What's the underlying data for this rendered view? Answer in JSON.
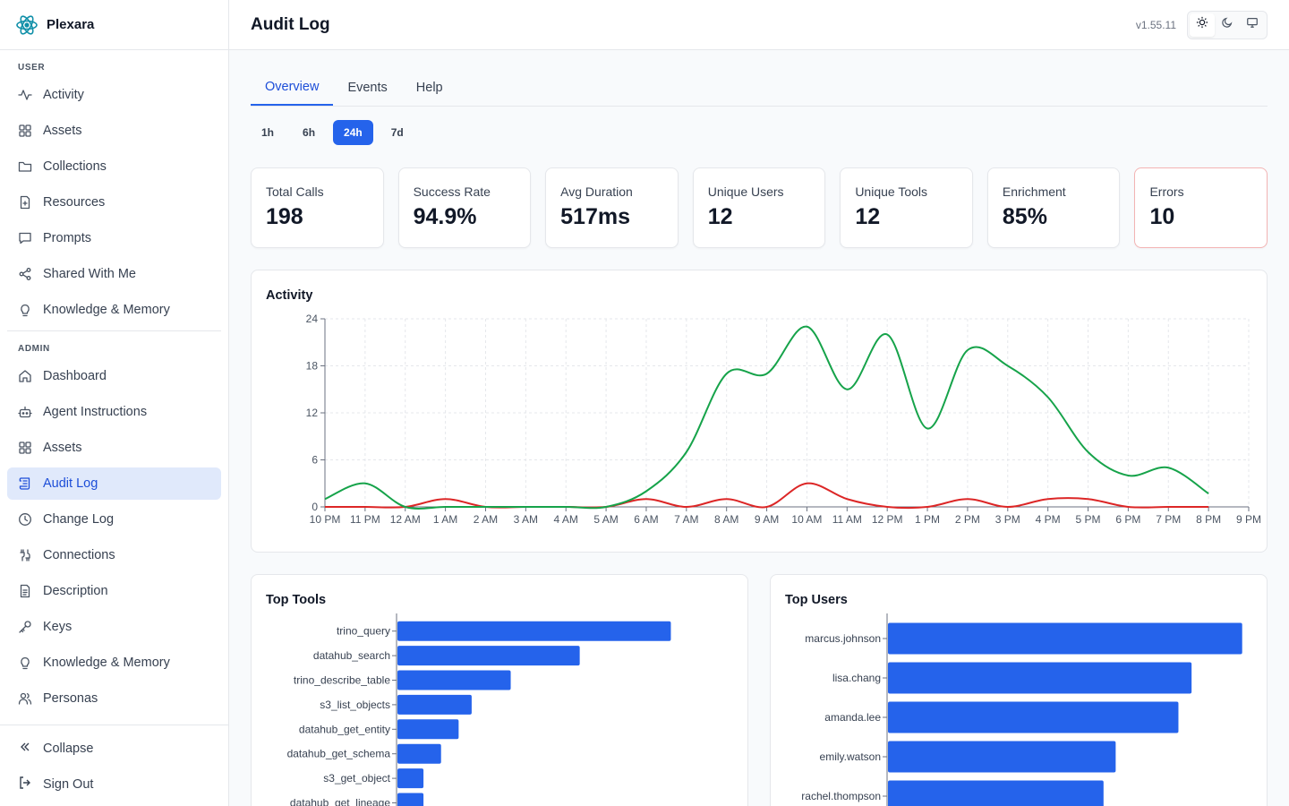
{
  "app": {
    "name": "Plexara",
    "version": "v1.55.11"
  },
  "header": {
    "title": "Audit Log"
  },
  "sidebar": {
    "user_label": "USER",
    "user_items": [
      {
        "label": "Activity",
        "icon": "activity-icon"
      },
      {
        "label": "Assets",
        "icon": "grid-icon"
      },
      {
        "label": "Collections",
        "icon": "folder-icon"
      },
      {
        "label": "Resources",
        "icon": "file-icon"
      },
      {
        "label": "Prompts",
        "icon": "message-icon"
      },
      {
        "label": "Shared With Me",
        "icon": "share-icon"
      },
      {
        "label": "Knowledge & Memory",
        "icon": "lightbulb-icon"
      }
    ],
    "admin_label": "ADMIN",
    "admin_items": [
      {
        "label": "Dashboard",
        "icon": "home-icon"
      },
      {
        "label": "Agent Instructions",
        "icon": "bot-icon"
      },
      {
        "label": "Assets",
        "icon": "grid-icon"
      },
      {
        "label": "Audit Log",
        "icon": "scroll-icon",
        "active": true
      },
      {
        "label": "Change Log",
        "icon": "clock-icon"
      },
      {
        "label": "Connections",
        "icon": "cable-icon"
      },
      {
        "label": "Description",
        "icon": "doc-icon"
      },
      {
        "label": "Keys",
        "icon": "key-icon"
      },
      {
        "label": "Knowledge & Memory",
        "icon": "lightbulb-icon"
      },
      {
        "label": "Personas",
        "icon": "users-icon"
      }
    ],
    "footer": {
      "collapse": "Collapse",
      "signout": "Sign Out"
    }
  },
  "tabs": [
    "Overview",
    "Events",
    "Help"
  ],
  "ranges": [
    "1h",
    "6h",
    "24h",
    "7d"
  ],
  "stats": [
    {
      "label": "Total Calls",
      "value": "198"
    },
    {
      "label": "Success Rate",
      "value": "94.9%"
    },
    {
      "label": "Avg Duration",
      "value": "517ms"
    },
    {
      "label": "Unique Users",
      "value": "12"
    },
    {
      "label": "Unique Tools",
      "value": "12"
    },
    {
      "label": "Enrichment",
      "value": "85%"
    },
    {
      "label": "Errors",
      "value": "10"
    }
  ],
  "colors": {
    "accent": "#2563eb",
    "success_line": "#16a34a",
    "error_line": "#dc2626",
    "bar": "#2563eb"
  },
  "activity": {
    "title": "Activity"
  },
  "top_tools": {
    "title": "Top Tools"
  },
  "top_users": {
    "title": "Top Users"
  },
  "chart_data": [
    {
      "type": "line",
      "title": "Activity",
      "x": [
        "10 PM",
        "11 PM",
        "12 AM",
        "1 AM",
        "2 AM",
        "3 AM",
        "4 AM",
        "5 AM",
        "6 AM",
        "7 AM",
        "8 AM",
        "9 AM",
        "10 AM",
        "11 AM",
        "12 PM",
        "1 PM",
        "2 PM",
        "3 PM",
        "4 PM",
        "5 PM",
        "6 PM",
        "7 PM",
        "8 PM",
        "9 PM"
      ],
      "yticks": [
        0,
        6,
        12,
        18,
        24
      ],
      "ylim": [
        0,
        24
      ],
      "grid": true,
      "series": [
        {
          "color": "#16a34a",
          "values": [
            1,
            3,
            0,
            0,
            0,
            0,
            0,
            0,
            2,
            7,
            17,
            17,
            23,
            15,
            22,
            10,
            20,
            18,
            14,
            7,
            4,
            5,
            1.7,
            null
          ]
        },
        {
          "color": "#dc2626",
          "values": [
            0,
            0,
            0,
            1,
            0,
            0,
            0,
            0,
            1,
            0,
            1,
            0,
            3,
            1,
            0,
            0,
            1,
            0,
            1,
            1,
            0,
            0,
            0,
            null
          ]
        }
      ]
    },
    {
      "type": "bar",
      "orientation": "horizontal",
      "title": "Top Tools",
      "categories": [
        "trino_query",
        "datahub_search",
        "trino_describe_table",
        "s3_list_objects",
        "datahub_get_entity",
        "datahub_get_schema",
        "s3_get_object",
        "datahub_get_lineage"
      ],
      "values": [
        42,
        28,
        17.4,
        11.4,
        9.4,
        6.7,
        4,
        4
      ],
      "xlim": [
        0,
        55
      ]
    },
    {
      "type": "bar",
      "orientation": "horizontal",
      "title": "Top Users",
      "categories": [
        "marcus.johnson",
        "lisa.chang",
        "amanda.lee",
        "emily.watson",
        "rachel.thompson"
      ],
      "values": [
        35,
        30,
        28.7,
        22.5,
        21.3
      ],
      "xlim": [
        0,
        36
      ]
    }
  ]
}
